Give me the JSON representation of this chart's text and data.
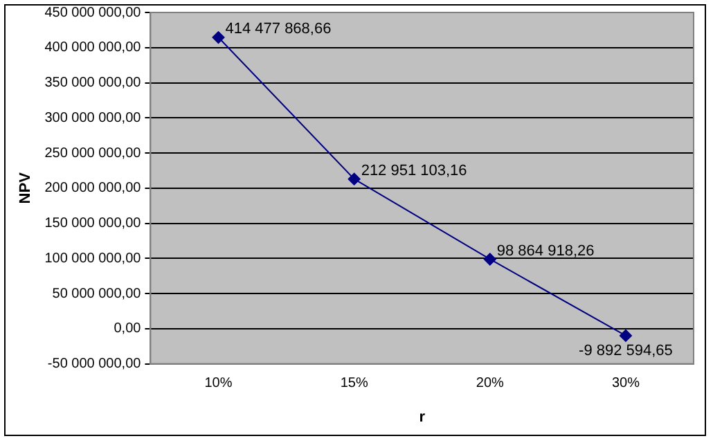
{
  "chart_data": {
    "type": "line",
    "xlabel": "r",
    "ylabel": "NPV",
    "categories": [
      "10%",
      "15%",
      "20%",
      "30%"
    ],
    "series": [
      {
        "color": "#000080",
        "values": [
          414477868.66,
          212951103.16,
          98864918.26,
          -9892594.65
        ],
        "value_labels": [
          "414 477 868,66",
          "212 951 103,16",
          "98 864 918,26",
          "-9 892 594,65"
        ]
      }
    ],
    "ylim": [
      -50000000,
      450000000
    ],
    "yticks": [
      {
        "value": -50000000,
        "label": "-50 000 000,00"
      },
      {
        "value": 0,
        "label": "0,00"
      },
      {
        "value": 50000000,
        "label": "50 000 000,00"
      },
      {
        "value": 100000000,
        "label": "100 000 000,00"
      },
      {
        "value": 150000000,
        "label": "150 000 000,00"
      },
      {
        "value": 200000000,
        "label": "200 000 000,00"
      },
      {
        "value": 250000000,
        "label": "250 000 000,00"
      },
      {
        "value": 300000000,
        "label": "300 000 000,00"
      },
      {
        "value": 350000000,
        "label": "350 000 000,00"
      },
      {
        "value": 400000000,
        "label": "400 000 000,00"
      },
      {
        "value": 450000000,
        "label": "450 000 000,00"
      }
    ],
    "grid": "y",
    "legend": false,
    "marker": "diamond",
    "line_style": "solid"
  }
}
